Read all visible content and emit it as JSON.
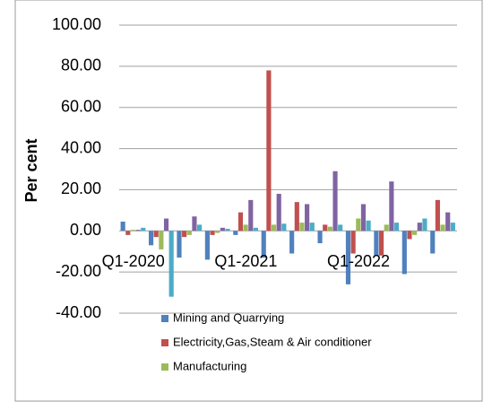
{
  "chart_data": {
    "type": "bar",
    "y_label": "Per cent",
    "categories": [
      "Q1-2020",
      null,
      null,
      null,
      "Q1-2021",
      null,
      null,
      null,
      "Q1-2022",
      null,
      null,
      null
    ],
    "series": [
      {
        "name": "Mining and Quarrying",
        "color": "#4f81bd",
        "values": [
          4.5,
          -7,
          -13,
          -14,
          -2,
          -13,
          -11,
          -6,
          -26,
          -12,
          -21,
          -11
        ]
      },
      {
        "name": "Electricity,Gas,Steam & Air conditioner",
        "color": "#c0504d",
        "values": [
          -2,
          -3,
          -3,
          -2,
          9,
          78,
          14,
          3,
          -11,
          -12,
          -4,
          15
        ]
      },
      {
        "name": "Manufacturing",
        "color": "#9bbb59",
        "values": [
          0.5,
          -9,
          -2,
          -1,
          3,
          3,
          4,
          2,
          6,
          3,
          -2,
          3
        ]
      },
      {
        "color": "#8064a2",
        "values": [
          0.5,
          6,
          7,
          1.5,
          15,
          18,
          13,
          29,
          13,
          24,
          4,
          9
        ]
      },
      {
        "color": "#4bacc6",
        "values": [
          1.5,
          -32,
          3,
          1,
          1.5,
          3.5,
          4,
          3,
          5,
          4,
          6,
          4
        ]
      }
    ],
    "ylim": [
      -40,
      100
    ],
    "yticks": [
      {
        "value": -40,
        "label": "-40.00"
      },
      {
        "value": -20,
        "label": "-20.00"
      },
      {
        "value": 0,
        "label": "0.00"
      },
      {
        "value": 20,
        "label": "20.00"
      },
      {
        "value": 40,
        "label": "40.00"
      },
      {
        "value": 60,
        "label": "60.00"
      },
      {
        "value": 80,
        "label": "80.00"
      },
      {
        "value": 100,
        "label": "100.00"
      }
    ],
    "grid": true,
    "legend": "bottom"
  }
}
